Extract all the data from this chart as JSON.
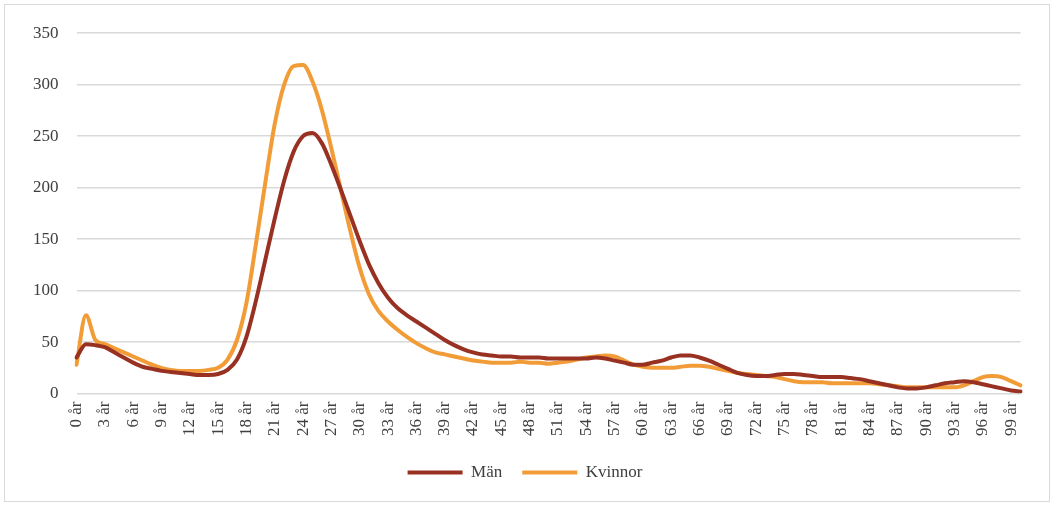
{
  "chart_data": {
    "type": "line",
    "categories": [
      "0 år",
      null,
      null,
      "3 år",
      null,
      null,
      "6 år",
      null,
      null,
      "9 år",
      null,
      null,
      "12 år",
      null,
      null,
      "15 år",
      null,
      null,
      "18 år",
      null,
      null,
      "21 år",
      null,
      null,
      "24 år",
      null,
      null,
      "27 år",
      null,
      null,
      "30 år",
      null,
      null,
      "33 år",
      null,
      null,
      "36 år",
      null,
      null,
      "39 år",
      null,
      null,
      "42 år",
      null,
      null,
      "45 år",
      null,
      null,
      "48 år",
      null,
      null,
      "51 år",
      null,
      null,
      "54 år",
      null,
      null,
      "57 år",
      null,
      null,
      "60 år",
      null,
      null,
      "63 år",
      null,
      null,
      "66 år",
      null,
      null,
      "69 år",
      null,
      null,
      "72 år",
      null,
      null,
      "75 år",
      null,
      null,
      "78 år",
      null,
      null,
      "81 år",
      null,
      null,
      "84 år",
      null,
      null,
      "87 år",
      null,
      null,
      "90 år",
      null,
      null,
      "93 år",
      null,
      null,
      "96 år",
      null,
      null,
      "99 år",
      null
    ],
    "series": [
      {
        "name": "Män",
        "color": "#983121",
        "values": [
          35,
          48,
          47,
          45,
          40,
          35,
          30,
          26,
          24,
          22,
          21,
          20,
          19,
          18,
          18,
          19,
          23,
          33,
          55,
          90,
          130,
          170,
          207,
          235,
          250,
          253,
          243,
          222,
          198,
          173,
          148,
          125,
          107,
          93,
          83,
          76,
          70,
          64,
          58,
          52,
          47,
          43,
          40,
          38,
          37,
          36,
          36,
          35,
          35,
          35,
          34,
          34,
          34,
          34,
          34,
          35,
          34,
          32,
          30,
          28,
          28,
          30,
          32,
          35,
          37,
          37,
          35,
          32,
          28,
          24,
          20,
          18,
          17,
          17,
          18,
          19,
          19,
          18,
          17,
          16,
          16,
          16,
          15,
          14,
          12,
          10,
          8,
          6,
          5,
          5,
          6,
          8,
          10,
          11,
          12,
          11,
          9,
          7,
          5,
          3,
          2
        ]
      },
      {
        "name": "Kvinnor",
        "color": "#f29c38",
        "values": [
          28,
          76,
          52,
          48,
          44,
          40,
          36,
          32,
          28,
          25,
          23,
          22,
          22,
          22,
          23,
          25,
          33,
          52,
          88,
          145,
          205,
          262,
          300,
          318,
          319,
          303,
          275,
          238,
          198,
          158,
          122,
          96,
          80,
          70,
          62,
          55,
          49,
          44,
          40,
          38,
          36,
          34,
          32,
          31,
          30,
          30,
          30,
          31,
          30,
          30,
          29,
          30,
          31,
          33,
          35,
          36,
          37,
          36,
          32,
          28,
          26,
          25,
          25,
          25,
          26,
          27,
          27,
          26,
          24,
          22,
          20,
          19,
          18,
          17,
          16,
          14,
          12,
          11,
          11,
          11,
          10,
          10,
          10,
          10,
          10,
          9,
          8,
          7,
          6,
          6,
          6,
          6,
          6,
          6,
          8,
          12,
          16,
          17,
          16,
          12,
          8
        ]
      }
    ],
    "ylim": [
      0,
      350
    ],
    "yticks": [
      0,
      50,
      100,
      150,
      200,
      250,
      300,
      350
    ],
    "grid": "y",
    "legend": "bottom",
    "marker": "none",
    "line_style": "solid"
  }
}
